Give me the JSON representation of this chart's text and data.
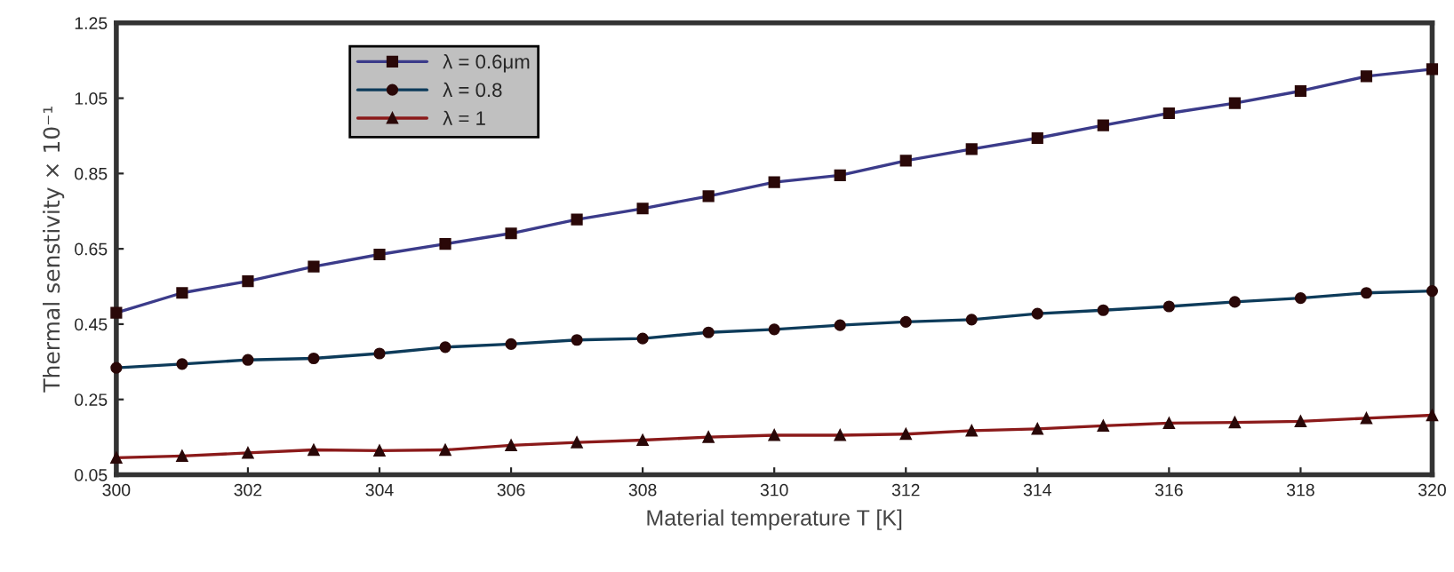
{
  "chart_data": {
    "type": "line",
    "xlabel": "Material temperature T [K]",
    "ylabel": "Thermal senstivity × 10⁻¹",
    "x": [
      300,
      301,
      302,
      303,
      304,
      305,
      306,
      307,
      308,
      309,
      310,
      311,
      312,
      313,
      314,
      315,
      316,
      317,
      318,
      319,
      320
    ],
    "series": [
      {
        "name": "λ = 0.6μm",
        "color": "#3b3b8a",
        "marker": "square",
        "values": [
          0.48,
          0.533,
          0.564,
          0.603,
          0.635,
          0.663,
          0.691,
          0.728,
          0.757,
          0.79,
          0.827,
          0.845,
          0.884,
          0.915,
          0.944,
          0.978,
          1.01,
          1.037,
          1.069,
          1.108,
          1.127
        ]
      },
      {
        "name": "λ = 0.8",
        "color": "#0d3b5a",
        "marker": "circle",
        "values": [
          0.334,
          0.344,
          0.355,
          0.359,
          0.372,
          0.389,
          0.397,
          0.408,
          0.412,
          0.428,
          0.436,
          0.447,
          0.456,
          0.462,
          0.478,
          0.487,
          0.497,
          0.509,
          0.519,
          0.533,
          0.538
        ]
      },
      {
        "name": "λ = 1",
        "color": "#8b1a1a",
        "marker": "triangle",
        "values": [
          0.095,
          0.1,
          0.108,
          0.116,
          0.114,
          0.116,
          0.128,
          0.136,
          0.142,
          0.15,
          0.155,
          0.155,
          0.158,
          0.167,
          0.172,
          0.18,
          0.187,
          0.189,
          0.192,
          0.2,
          0.208
        ]
      }
    ],
    "xlim": [
      300,
      320
    ],
    "xticks": [
      300,
      302,
      304,
      306,
      308,
      310,
      312,
      314,
      316,
      318,
      320
    ],
    "ylim": [
      0.05,
      1.25
    ],
    "yticks": [
      0.05,
      0.25,
      0.45,
      0.65,
      0.85,
      1.05,
      1.25
    ],
    "grid": false,
    "legend": "top left",
    "line_style": "solid"
  }
}
